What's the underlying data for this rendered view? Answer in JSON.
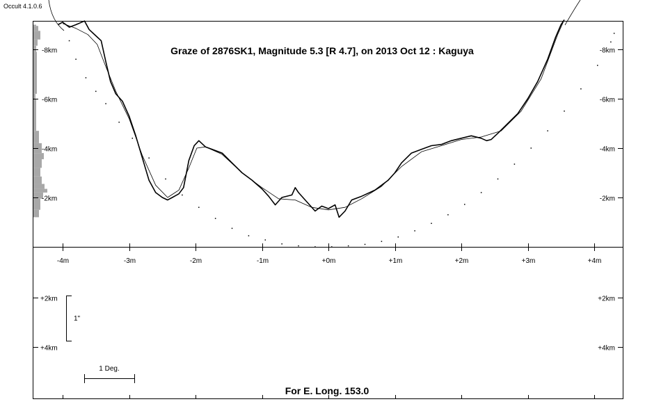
{
  "app": {
    "version_label": "Occult 4.1.0.6"
  },
  "chart_data": {
    "type": "line",
    "title": "Graze of  2876SK1,  Magnitude 5.3 [R 4.7],  on 2013 Oct 12  :  Kaguya",
    "footer": "For E. Long. 153.0",
    "scale_bar_label": "1\"",
    "degree_bar_label": "1 Deg.",
    "x_axis": {
      "unit": "m",
      "xlim": [
        -4.4,
        4.4
      ],
      "ticks": [
        -4,
        -3,
        -2,
        -1,
        0,
        1,
        2,
        3,
        4
      ],
      "tick_labels": [
        "-4m",
        "-3m",
        "-2m",
        "-1m",
        "+0m",
        "+1m",
        "+2m",
        "+3m",
        "+4m"
      ]
    },
    "y_axis_upper": {
      "unit": "km",
      "ylim": [
        0,
        9.2
      ],
      "ticks": [
        8,
        6,
        4,
        2
      ],
      "tick_labels": [
        "-8km",
        "-6km",
        "-4km",
        "-2km"
      ]
    },
    "y_axis_lower": {
      "unit": "km",
      "ticks": [
        2,
        4
      ],
      "tick_labels": [
        "+2km",
        "+4km"
      ]
    },
    "series": [
      {
        "role": "limb-profile",
        "points": [
          [
            -4.07,
            9.0
          ],
          [
            -4.0,
            9.1
          ],
          [
            -3.9,
            8.9
          ],
          [
            -3.8,
            9.0
          ],
          [
            -3.67,
            9.15
          ],
          [
            -3.6,
            8.8
          ],
          [
            -3.5,
            8.55
          ],
          [
            -3.42,
            8.35
          ],
          [
            -3.35,
            7.5
          ],
          [
            -3.28,
            6.7
          ],
          [
            -3.2,
            6.2
          ],
          [
            -3.1,
            5.9
          ],
          [
            -3.0,
            5.3
          ],
          [
            -2.9,
            4.5
          ],
          [
            -2.8,
            3.6
          ],
          [
            -2.7,
            2.7
          ],
          [
            -2.6,
            2.2
          ],
          [
            -2.5,
            2.0
          ],
          [
            -2.42,
            1.9
          ],
          [
            -2.35,
            2.0
          ],
          [
            -2.25,
            2.15
          ],
          [
            -2.18,
            2.4
          ],
          [
            -2.1,
            3.5
          ],
          [
            -2.02,
            4.1
          ],
          [
            -1.95,
            4.3
          ],
          [
            -1.85,
            4.05
          ],
          [
            -1.75,
            3.95
          ],
          [
            -1.6,
            3.8
          ],
          [
            -1.45,
            3.4
          ],
          [
            -1.3,
            3.0
          ],
          [
            -1.15,
            2.7
          ],
          [
            -1.0,
            2.35
          ],
          [
            -0.9,
            2.05
          ],
          [
            -0.8,
            1.7
          ],
          [
            -0.7,
            2.0
          ],
          [
            -0.55,
            2.1
          ],
          [
            -0.5,
            2.4
          ],
          [
            -0.45,
            2.2
          ],
          [
            -0.35,
            1.9
          ],
          [
            -0.2,
            1.45
          ],
          [
            -0.1,
            1.65
          ],
          [
            0.0,
            1.55
          ],
          [
            0.1,
            1.7
          ],
          [
            0.16,
            1.2
          ],
          [
            0.25,
            1.45
          ],
          [
            0.35,
            1.9
          ],
          [
            0.5,
            2.05
          ],
          [
            0.7,
            2.3
          ],
          [
            0.9,
            2.7
          ],
          [
            1.0,
            3.0
          ],
          [
            1.1,
            3.4
          ],
          [
            1.25,
            3.8
          ],
          [
            1.4,
            3.95
          ],
          [
            1.55,
            4.1
          ],
          [
            1.7,
            4.15
          ],
          [
            1.85,
            4.3
          ],
          [
            2.0,
            4.4
          ],
          [
            2.15,
            4.5
          ],
          [
            2.3,
            4.4
          ],
          [
            2.38,
            4.3
          ],
          [
            2.45,
            4.35
          ],
          [
            2.55,
            4.6
          ],
          [
            2.7,
            5.0
          ],
          [
            2.85,
            5.4
          ],
          [
            3.0,
            6.0
          ],
          [
            3.15,
            6.7
          ],
          [
            3.3,
            7.6
          ],
          [
            3.42,
            8.5
          ],
          [
            3.5,
            9.0
          ],
          [
            3.55,
            9.2
          ]
        ]
      },
      {
        "role": "smoothed-limb",
        "points": [
          [
            -4.0,
            9.05
          ],
          [
            -3.8,
            8.85
          ],
          [
            -3.62,
            8.6
          ],
          [
            -3.48,
            8.2
          ],
          [
            -3.35,
            7.3
          ],
          [
            -3.2,
            6.3
          ],
          [
            -3.0,
            5.2
          ],
          [
            -2.8,
            3.7
          ],
          [
            -2.6,
            2.5
          ],
          [
            -2.42,
            2.0
          ],
          [
            -2.25,
            2.3
          ],
          [
            -2.1,
            3.2
          ],
          [
            -1.98,
            4.0
          ],
          [
            -1.85,
            4.05
          ],
          [
            -1.6,
            3.75
          ],
          [
            -1.3,
            3.0
          ],
          [
            -1.0,
            2.4
          ],
          [
            -0.75,
            1.95
          ],
          [
            -0.5,
            1.9
          ],
          [
            -0.25,
            1.6
          ],
          [
            0.0,
            1.5
          ],
          [
            0.25,
            1.6
          ],
          [
            0.5,
            1.95
          ],
          [
            0.8,
            2.45
          ],
          [
            1.1,
            3.25
          ],
          [
            1.4,
            3.85
          ],
          [
            1.7,
            4.1
          ],
          [
            2.0,
            4.35
          ],
          [
            2.3,
            4.45
          ],
          [
            2.6,
            4.7
          ],
          [
            2.9,
            5.5
          ],
          [
            3.2,
            6.8
          ],
          [
            3.45,
            8.6
          ],
          [
            3.55,
            9.2
          ]
        ]
      },
      {
        "role": "center-of-mass-path",
        "points": [
          [
            -3.9,
            8.35
          ],
          [
            -3.8,
            7.6
          ],
          [
            -3.65,
            6.85
          ],
          [
            -3.5,
            6.3
          ],
          [
            -3.35,
            5.8
          ],
          [
            -3.15,
            5.05
          ],
          [
            -2.95,
            4.4
          ],
          [
            -2.7,
            3.6
          ],
          [
            -2.45,
            2.75
          ],
          [
            -2.2,
            2.1
          ],
          [
            -1.95,
            1.6
          ],
          [
            -1.7,
            1.15
          ],
          [
            -1.45,
            0.75
          ],
          [
            -1.2,
            0.45
          ],
          [
            -0.95,
            0.28
          ],
          [
            -0.7,
            0.12
          ],
          [
            -0.45,
            0.04
          ],
          [
            -0.2,
            0.0
          ],
          [
            0.05,
            0.0
          ],
          [
            0.3,
            0.04
          ],
          [
            0.55,
            0.1
          ],
          [
            0.8,
            0.22
          ],
          [
            1.05,
            0.4
          ],
          [
            1.3,
            0.65
          ],
          [
            1.55,
            0.95
          ],
          [
            1.8,
            1.3
          ],
          [
            2.05,
            1.72
          ],
          [
            2.3,
            2.2
          ],
          [
            2.55,
            2.75
          ],
          [
            2.8,
            3.35
          ],
          [
            3.05,
            4.0
          ],
          [
            3.3,
            4.7
          ],
          [
            3.55,
            5.5
          ],
          [
            3.8,
            6.4
          ],
          [
            4.05,
            7.35
          ],
          [
            4.25,
            8.3
          ],
          [
            4.3,
            8.65
          ]
        ]
      }
    ],
    "side_histogram": [
      {
        "from": 9.0,
        "to": 8.95,
        "width": 4
      },
      {
        "from": 8.95,
        "to": 8.75,
        "width": 7
      },
      {
        "from": 8.75,
        "to": 8.4,
        "width": 10
      },
      {
        "from": 8.4,
        "to": 8.15,
        "width": 6
      },
      {
        "from": 8.15,
        "to": 7.9,
        "width": 4
      },
      {
        "from": 7.9,
        "to": 6.2,
        "width": 5
      },
      {
        "from": 6.2,
        "to": 6.0,
        "width": 3
      },
      {
        "from": 6.0,
        "to": 4.7,
        "width": 4
      },
      {
        "from": 4.7,
        "to": 4.2,
        "width": 8
      },
      {
        "from": 4.2,
        "to": 3.8,
        "width": 12
      },
      {
        "from": 3.8,
        "to": 3.55,
        "width": 15
      },
      {
        "from": 3.55,
        "to": 3.2,
        "width": 12
      },
      {
        "from": 3.2,
        "to": 2.85,
        "width": 10
      },
      {
        "from": 2.85,
        "to": 2.55,
        "width": 12
      },
      {
        "from": 2.55,
        "to": 2.35,
        "width": 16
      },
      {
        "from": 2.35,
        "to": 2.2,
        "width": 20
      },
      {
        "from": 2.2,
        "to": 1.95,
        "width": 14
      },
      {
        "from": 1.95,
        "to": 1.5,
        "width": 10
      },
      {
        "from": 1.5,
        "to": 1.2,
        "width": 8
      }
    ]
  }
}
